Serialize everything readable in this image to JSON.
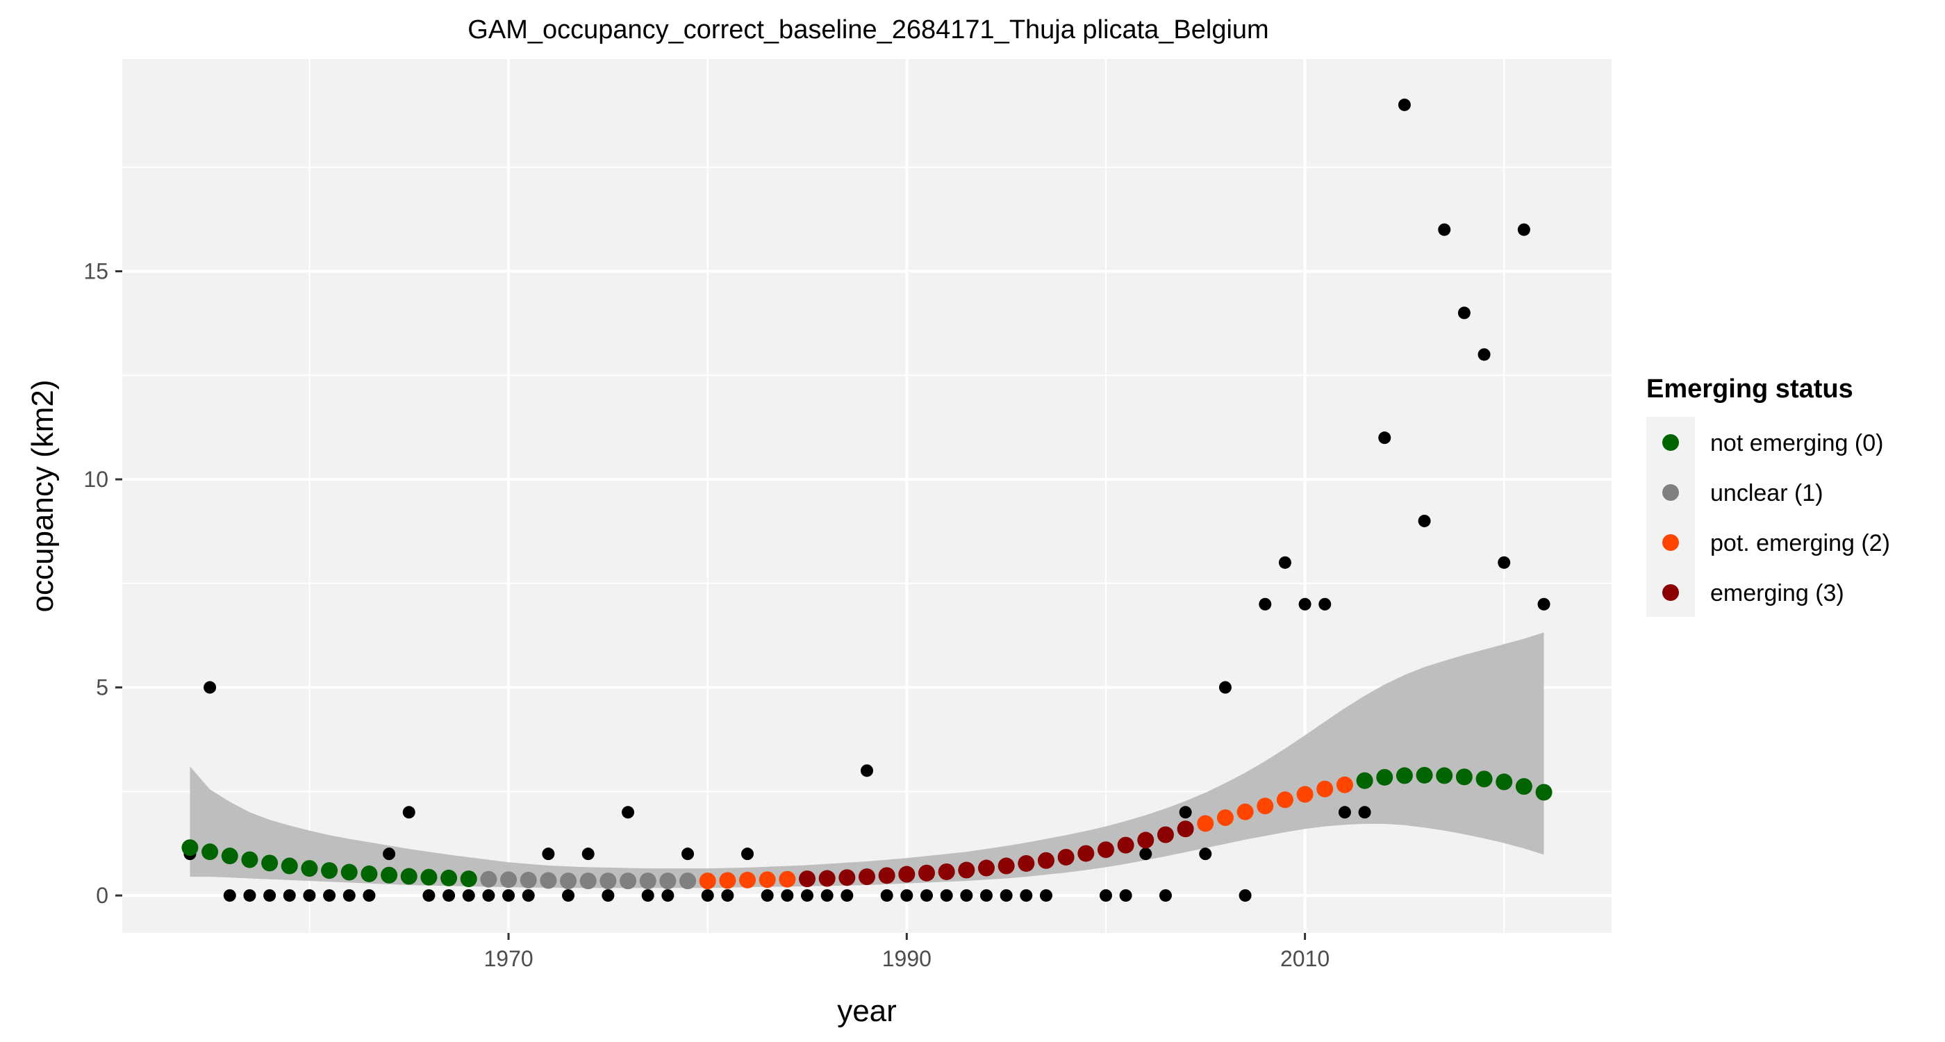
{
  "chart_data": {
    "type": "scatter",
    "title": "GAM_occupancy_correct_baseline_2684171_Thuja plicata_Belgium",
    "xlabel": "year",
    "ylabel": "occupancy (km2)",
    "xlim": [
      1950.6,
      2025.4
    ],
    "ylim": [
      -0.9,
      20.1
    ],
    "x_ticks": [
      1970,
      1990,
      2010
    ],
    "y_ticks": [
      0,
      5,
      10,
      15
    ],
    "grid": true,
    "legend": {
      "title": "Emerging status",
      "placement": "right",
      "entries": [
        {
          "label": "not emerging (0)",
          "color": "#006400"
        },
        {
          "label": "unclear (1)",
          "color": "#808080"
        },
        {
          "label": "pot. emerging (2)",
          "color": "#ff4500"
        },
        {
          "label": "emerging (3)",
          "color": "#8b0000"
        }
      ]
    },
    "colors": {
      "observed": "#000000",
      "band": "#bebebe",
      "panel": "#f2f2f2",
      "grid": "#ffffff"
    },
    "observed": {
      "x": [
        1954,
        1955,
        1956,
        1957,
        1958,
        1959,
        1960,
        1961,
        1962,
        1963,
        1964,
        1965,
        1966,
        1967,
        1968,
        1969,
        1970,
        1971,
        1972,
        1973,
        1974,
        1975,
        1976,
        1977,
        1978,
        1979,
        1980,
        1981,
        1982,
        1983,
        1984,
        1985,
        1986,
        1987,
        1988,
        1989,
        1990,
        1991,
        1992,
        1993,
        1994,
        1995,
        1996,
        1997,
        2000,
        2001,
        2002,
        2003,
        2004,
        2005,
        2006,
        2007,
        2008,
        2009,
        2010,
        2011,
        2012,
        2013,
        2014,
        2015,
        2016,
        2017,
        2018,
        2019,
        2020,
        2021,
        2022
      ],
      "y": [
        1,
        5,
        0,
        0,
        0,
        0,
        0,
        0,
        0,
        0,
        1,
        2,
        0,
        0,
        0,
        0,
        0,
        0,
        1,
        0,
        1,
        0,
        2,
        0,
        0,
        1,
        0,
        0,
        1,
        0,
        0,
        0,
        0,
        0,
        3,
        0,
        0,
        0,
        0,
        0,
        0,
        0,
        0,
        0,
        0,
        0,
        1,
        0,
        2,
        1,
        5,
        0,
        7,
        8,
        7,
        7,
        2,
        2,
        11,
        19,
        9,
        16,
        14,
        13,
        8,
        16,
        7
      ]
    },
    "fitted": {
      "x": [
        1954,
        1955,
        1956,
        1957,
        1958,
        1959,
        1960,
        1961,
        1962,
        1963,
        1964,
        1965,
        1966,
        1967,
        1968,
        1969,
        1970,
        1971,
        1972,
        1973,
        1974,
        1975,
        1976,
        1977,
        1978,
        1979,
        1980,
        1981,
        1982,
        1983,
        1984,
        1985,
        1986,
        1987,
        1988,
        1989,
        1990,
        1991,
        1992,
        1993,
        1994,
        1995,
        1996,
        1997,
        1998,
        1999,
        2000,
        2001,
        2002,
        2003,
        2004,
        2005,
        2006,
        2007,
        2008,
        2009,
        2010,
        2011,
        2012,
        2013,
        2014,
        2015,
        2016,
        2017,
        2018,
        2019,
        2020,
        2021,
        2022
      ],
      "y": [
        1.15,
        1.05,
        0.95,
        0.86,
        0.78,
        0.71,
        0.65,
        0.6,
        0.56,
        0.52,
        0.49,
        0.46,
        0.44,
        0.42,
        0.4,
        0.39,
        0.38,
        0.37,
        0.36,
        0.35,
        0.35,
        0.35,
        0.35,
        0.35,
        0.35,
        0.35,
        0.35,
        0.36,
        0.37,
        0.38,
        0.39,
        0.4,
        0.41,
        0.43,
        0.45,
        0.48,
        0.51,
        0.54,
        0.57,
        0.61,
        0.66,
        0.71,
        0.77,
        0.84,
        0.92,
        1.01,
        1.1,
        1.21,
        1.33,
        1.46,
        1.6,
        1.73,
        1.87,
        2.01,
        2.15,
        2.3,
        2.43,
        2.56,
        2.66,
        2.76,
        2.84,
        2.88,
        2.89,
        2.88,
        2.85,
        2.8,
        2.73,
        2.62,
        2.48
      ],
      "status": [
        0,
        0,
        0,
        0,
        0,
        0,
        0,
        0,
        0,
        0,
        0,
        0,
        0,
        0,
        0,
        1,
        1,
        1,
        1,
        1,
        1,
        1,
        1,
        1,
        1,
        1,
        2,
        2,
        2,
        2,
        2,
        3,
        3,
        3,
        3,
        3,
        3,
        3,
        3,
        3,
        3,
        3,
        3,
        3,
        3,
        3,
        3,
        3,
        3,
        3,
        3,
        2,
        2,
        2,
        2,
        2,
        2,
        2,
        2,
        0,
        0,
        0,
        0,
        0,
        0,
        0,
        0,
        0,
        0
      ],
      "lower": [
        0.45,
        0.45,
        0.43,
        0.41,
        0.39,
        0.37,
        0.35,
        0.33,
        0.31,
        0.29,
        0.27,
        0.25,
        0.24,
        0.23,
        0.22,
        0.21,
        0.2,
        0.19,
        0.19,
        0.18,
        0.18,
        0.18,
        0.18,
        0.18,
        0.18,
        0.18,
        0.18,
        0.19,
        0.2,
        0.21,
        0.21,
        0.22,
        0.23,
        0.24,
        0.25,
        0.27,
        0.29,
        0.31,
        0.33,
        0.35,
        0.38,
        0.41,
        0.45,
        0.5,
        0.55,
        0.61,
        0.68,
        0.76,
        0.85,
        0.94,
        1.04,
        1.14,
        1.24,
        1.34,
        1.43,
        1.52,
        1.6,
        1.66,
        1.7,
        1.72,
        1.72,
        1.69,
        1.63,
        1.56,
        1.47,
        1.37,
        1.26,
        1.13,
        0.98
      ],
      "upper": [
        3.1,
        2.55,
        2.25,
        2.0,
        1.82,
        1.68,
        1.56,
        1.45,
        1.36,
        1.28,
        1.2,
        1.12,
        1.05,
        0.98,
        0.92,
        0.86,
        0.8,
        0.76,
        0.72,
        0.7,
        0.68,
        0.67,
        0.66,
        0.65,
        0.65,
        0.65,
        0.65,
        0.66,
        0.67,
        0.69,
        0.71,
        0.73,
        0.76,
        0.79,
        0.82,
        0.86,
        0.9,
        0.95,
        1.0,
        1.05,
        1.12,
        1.19,
        1.27,
        1.36,
        1.45,
        1.55,
        1.66,
        1.79,
        1.93,
        2.09,
        2.27,
        2.47,
        2.7,
        2.95,
        3.23,
        3.53,
        3.85,
        4.18,
        4.5,
        4.8,
        5.07,
        5.3,
        5.49,
        5.64,
        5.78,
        5.91,
        6.04,
        6.17,
        6.32
      ]
    }
  }
}
